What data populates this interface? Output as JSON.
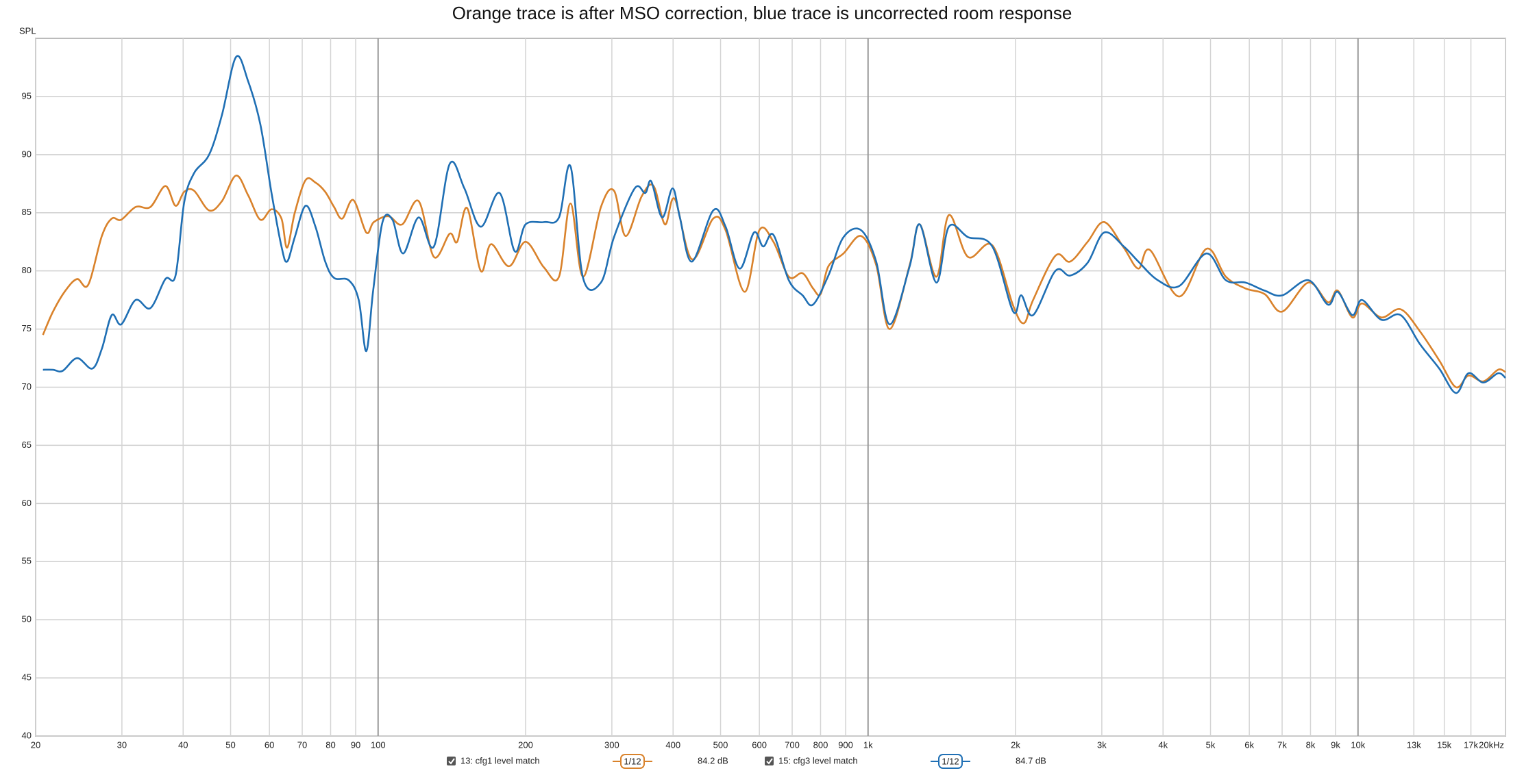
{
  "chart_data": {
    "type": "line",
    "title": "Orange trace is after MSO correction, blue trace is uncorrected room response",
    "y_label": "SPL",
    "x_scale": "log",
    "grid": true,
    "xlim": [
      20,
      20000
    ],
    "ylim": [
      40,
      100
    ],
    "yticks": [
      40,
      45,
      50,
      55,
      60,
      65,
      70,
      75,
      80,
      85,
      90,
      95
    ],
    "xticks": [
      20,
      30,
      40,
      50,
      60,
      70,
      80,
      90,
      100,
      200,
      300,
      400,
      500,
      600,
      700,
      800,
      900,
      {
        "value": 1000,
        "label": "1k"
      },
      {
        "value": 2000,
        "label": "2k"
      },
      {
        "value": 3000,
        "label": "3k"
      },
      {
        "value": 4000,
        "label": "4k"
      },
      {
        "value": 5000,
        "label": "5k"
      },
      {
        "value": 6000,
        "label": "6k"
      },
      {
        "value": 7000,
        "label": "7k"
      },
      {
        "value": 8000,
        "label": "8k"
      },
      {
        "value": 9000,
        "label": "9k"
      },
      {
        "value": 10000,
        "label": "10k"
      },
      {
        "value": 13000,
        "label": "13k"
      },
      {
        "value": 15000,
        "label": "15k"
      },
      {
        "value": 17000,
        "label": "17k"
      },
      {
        "value": 20000,
        "label": "20kHz"
      }
    ],
    "series": [
      {
        "name": "13: cfg1 level match",
        "color": "#d9822b",
        "smoothing": "1/12",
        "level": "84.2 dB",
        "x": [
          20.7,
          21.7,
          23.0,
          24.3,
          25.6,
          27.3,
          28.6,
          29.9,
          32.0,
          34.3,
          36.8,
          38.6,
          40.2,
          42.1,
          45.2,
          48.0,
          51.3,
          54.3,
          57.5,
          60.6,
          63.5,
          65.2,
          67.6,
          71.1,
          74.5,
          78.0,
          81.3,
          84.5,
          89.0,
          94.6,
          98,
          105,
          112,
          121,
          130,
          140,
          145,
          152,
          162,
          170,
          185,
          200,
          218,
          234,
          247,
          262,
          285,
          303,
          320,
          345,
          365,
          385,
          403,
          437,
          483,
          512,
          560,
          600,
          641,
          689,
          735,
          772,
          800,
          830,
          891,
          968,
          1039,
          1107,
          1216,
          1275,
          1379,
          1462,
          1600,
          1793,
          1978,
          2080,
          2172,
          2412,
          2585,
          2806,
          3033,
          3326,
          3562,
          3760,
          4316,
          4904,
          5374,
          5887,
          6451,
          7003,
          7924,
          8683,
          9090,
          9737,
          10190,
          11160,
          12220,
          13380,
          14650,
          15840,
          16810,
          18020,
          19310,
          20000
        ],
        "values": [
          74.5,
          76.5,
          78.3,
          79.3,
          78.8,
          83.0,
          84.5,
          84.4,
          85.5,
          85.5,
          87.3,
          85.6,
          86.8,
          86.9,
          85.2,
          86.0,
          88.2,
          86.5,
          84.4,
          85.3,
          84.5,
          82.0,
          85.0,
          87.8,
          87.6,
          86.8,
          85.5,
          84.5,
          86.1,
          83.3,
          84.2,
          84.7,
          84.0,
          86.0,
          81.2,
          83.2,
          82.5,
          85.4,
          80.0,
          82.3,
          80.4,
          82.5,
          80.3,
          79.5,
          85.8,
          79.5,
          85.5,
          86.9,
          83.0,
          86.4,
          87.3,
          84.0,
          86.2,
          81.0,
          84.5,
          83.5,
          78.2,
          83.5,
          82.5,
          79.5,
          79.8,
          78.5,
          78.0,
          80.4,
          81.5,
          83.0,
          80.5,
          75.0,
          80.5,
          84.0,
          79.5,
          84.8,
          81.2,
          82.2,
          77.0,
          75.5,
          77.5,
          81.3,
          80.8,
          82.5,
          84.2,
          82.0,
          80.2,
          81.8,
          77.8,
          81.9,
          79.5,
          78.5,
          78.0,
          76.5,
          79.0,
          77.3,
          78.3,
          76.0,
          77.2,
          76.0,
          76.7,
          74.8,
          72.3,
          70.0,
          71.0,
          70.5,
          71.5,
          71.3
        ]
      },
      {
        "name": "15: cfg3 level match",
        "color": "#1f6fb4",
        "smoothing": "1/12",
        "level": "84.7 dB",
        "x": [
          20.7,
          21.7,
          22.7,
          24.3,
          26.1,
          27.3,
          28.6,
          29.9,
          32.0,
          34.3,
          36.8,
          38.6,
          40.2,
          42.1,
          45.2,
          48.0,
          51.3,
          54.3,
          57.5,
          60.6,
          63.5,
          65.2,
          67.6,
          71.1,
          74.5,
          78.0,
          81.3,
          87.1,
          91.3,
          94.6,
          97.7,
          102.1,
          107,
          112.5,
          121,
          130,
          140,
          150,
          162,
          177,
          190,
          200,
          218,
          234,
          247,
          262,
          285,
          303,
          334,
          351,
          361,
          380,
          399,
          413,
          437,
          483,
          512,
          547,
          585,
          611,
          641,
          689,
          735,
          772,
          830,
          891,
          968,
          1039,
          1107,
          1216,
          1275,
          1379,
          1462,
          1600,
          1793,
          1978,
          2054,
          2172,
          2412,
          2585,
          2806,
          3033,
          3326,
          3562,
          3903,
          4316,
          4904,
          5374,
          5887,
          6451,
          7003,
          7924,
          8683,
          9090,
          9737,
          10190,
          11160,
          12220,
          13380,
          14650,
          15840,
          16810,
          18020,
          19310,
          20000
        ],
        "values": [
          71.5,
          71.5,
          71.4,
          72.5,
          71.6,
          73.3,
          76.2,
          75.4,
          77.5,
          76.8,
          79.3,
          79.6,
          85.9,
          88.4,
          90.0,
          93.4,
          98.4,
          96.3,
          92.6,
          86.7,
          82.1,
          80.8,
          82.9,
          85.6,
          83.8,
          80.8,
          79.4,
          79.2,
          77.5,
          73.1,
          78.3,
          84.2,
          84.4,
          81.5,
          84.6,
          82.1,
          89.2,
          87.1,
          83.8,
          86.7,
          81.7,
          84.0,
          84.2,
          84.6,
          89.0,
          79.4,
          79.0,
          82.9,
          87.1,
          86.7,
          87.7,
          84.6,
          87.1,
          84.6,
          80.8,
          85.2,
          83.8,
          80.2,
          83.3,
          82.1,
          83.1,
          79.2,
          77.9,
          77.1,
          79.6,
          82.9,
          83.5,
          80.8,
          75.4,
          80.4,
          84.0,
          79.0,
          83.8,
          82.9,
          82.1,
          76.5,
          77.9,
          76.2,
          80.0,
          79.6,
          80.7,
          83.3,
          82.1,
          80.8,
          79.2,
          78.7,
          81.5,
          79.2,
          79.0,
          78.3,
          77.9,
          79.2,
          77.1,
          78.2,
          76.2,
          77.5,
          75.8,
          76.2,
          73.7,
          71.6,
          69.5,
          71.2,
          70.4,
          71.2,
          70.8
        ]
      }
    ]
  }
}
